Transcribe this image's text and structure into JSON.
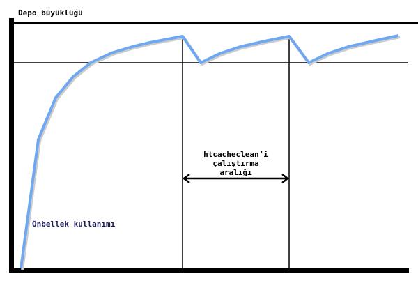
{
  "diagram": {
    "y_axis_label": "Depo büyüklüğü",
    "curve_label": "Önbellek kullanımı",
    "interval_label_lines": [
      "htcacheclean’i",
      "çalıştırma",
      "aralığı"
    ],
    "curve_color": "#6fa8f0",
    "curve_label_color": "#1a1a5a"
  }
}
